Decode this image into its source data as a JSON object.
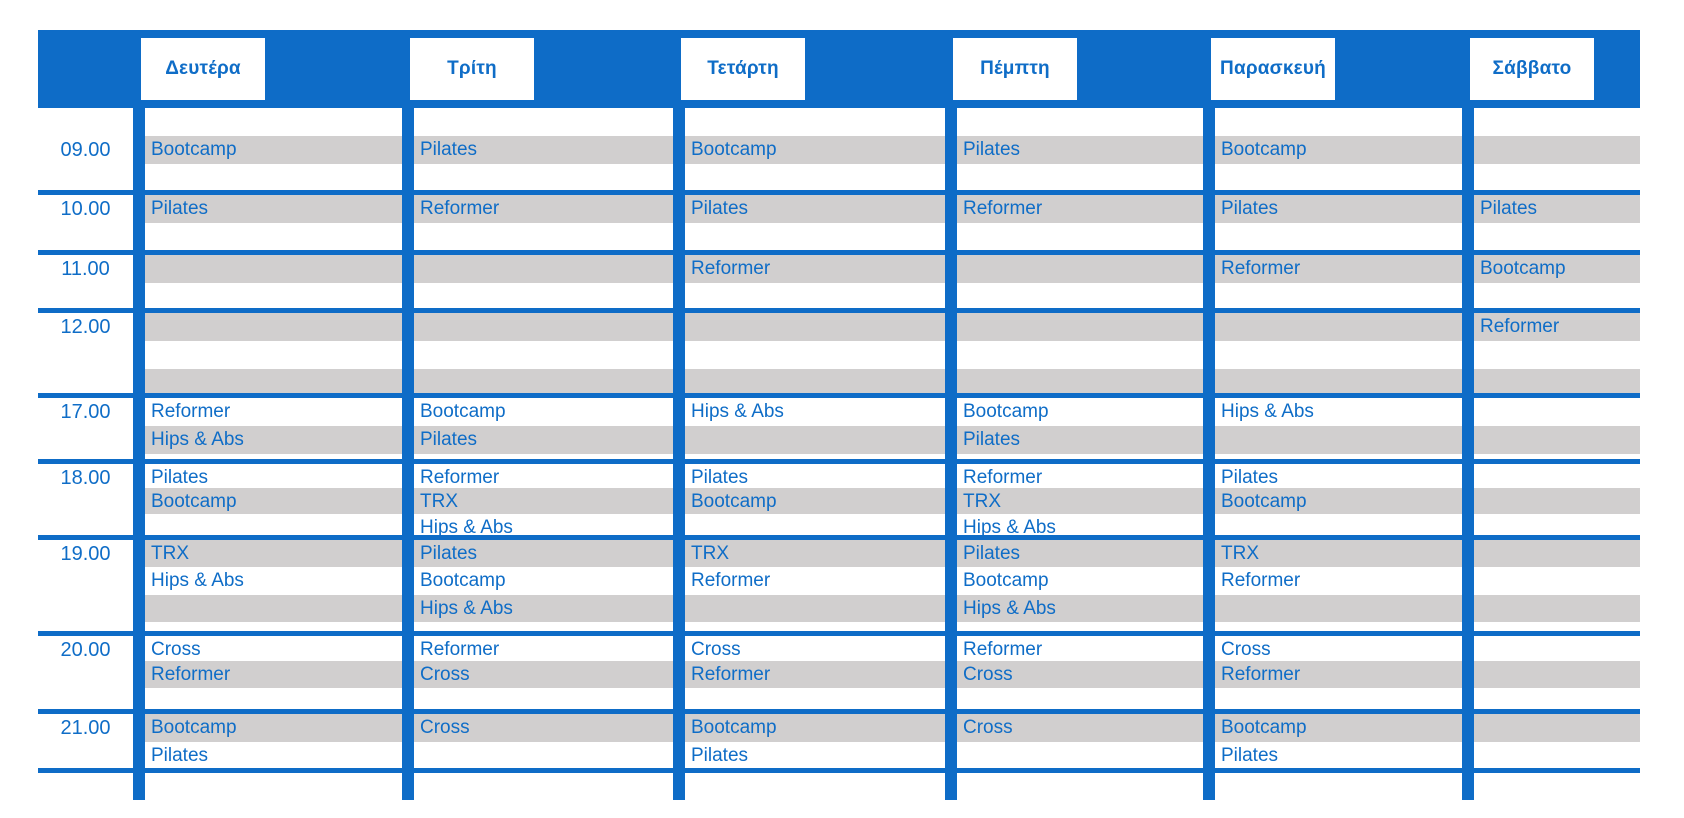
{
  "colors": {
    "primary_blue": "#0E6CC7",
    "text_blue": "#0F6DC7",
    "stripe_gray": "#D1CFCF",
    "header_box_bg": "#FFFFFF"
  },
  "days": [
    "Δευτέρα",
    "Τρίτη",
    "Τετάρτη",
    "Πέμπτη",
    "Παρασκευή",
    "Σάββατο"
  ],
  "schedule": [
    {
      "time": "09.00",
      "cells": [
        [
          "",
          "Bootcamp"
        ],
        [
          "",
          "Pilates"
        ],
        [
          "",
          "Bootcamp"
        ],
        [
          "",
          "Pilates"
        ],
        [
          "",
          "Bootcamp"
        ],
        []
      ]
    },
    {
      "time": "10.00",
      "cells": [
        [
          "Pilates"
        ],
        [
          "Reformer"
        ],
        [
          "Pilates"
        ],
        [
          "Reformer"
        ],
        [
          "Pilates"
        ],
        [
          "Pilates"
        ]
      ]
    },
    {
      "time": "11.00",
      "cells": [
        [],
        [],
        [
          "Reformer"
        ],
        [],
        [
          "Reformer"
        ],
        [
          "Bootcamp"
        ]
      ]
    },
    {
      "time": "12.00",
      "cells": [
        [],
        [],
        [],
        [],
        [],
        [
          "Reformer"
        ]
      ]
    },
    {
      "time": "17.00",
      "cells": [
        [
          "Reformer",
          "Hips & Abs"
        ],
        [
          "Bootcamp",
          "Pilates"
        ],
        [
          "Hips & Abs"
        ],
        [
          "Bootcamp",
          "Pilates"
        ],
        [
          "Hips & Abs"
        ],
        []
      ]
    },
    {
      "time": "18.00",
      "cells": [
        [
          "Pilates",
          "Bootcamp"
        ],
        [
          "Reformer",
          "TRX",
          "Hips & Abs"
        ],
        [
          "Pilates",
          "Bootcamp"
        ],
        [
          "Reformer",
          "TRX",
          "Hips & Abs"
        ],
        [
          "Pilates",
          "Bootcamp"
        ],
        []
      ]
    },
    {
      "time": "19.00",
      "cells": [
        [
          "TRX",
          "Hips & Abs"
        ],
        [
          "Pilates",
          "Bootcamp",
          "Hips & Abs"
        ],
        [
          "TRX",
          "Reformer"
        ],
        [
          "Pilates",
          "Bootcamp",
          "Hips & Abs"
        ],
        [
          "TRX",
          "Reformer"
        ],
        []
      ]
    },
    {
      "time": "20.00",
      "cells": [
        [
          "Cross",
          "Reformer"
        ],
        [
          "Reformer",
          "Cross"
        ],
        [
          "Cross",
          "Reformer"
        ],
        [
          "Reformer",
          "Cross"
        ],
        [
          "Cross",
          "Reformer"
        ],
        []
      ]
    },
    {
      "time": "21.00",
      "cells": [
        [
          "Bootcamp",
          "Pilates"
        ],
        [
          "Cross"
        ],
        [
          "Bootcamp",
          "Pilates"
        ],
        [
          "Cross"
        ],
        [
          "Bootcamp",
          "Pilates"
        ],
        []
      ]
    }
  ]
}
